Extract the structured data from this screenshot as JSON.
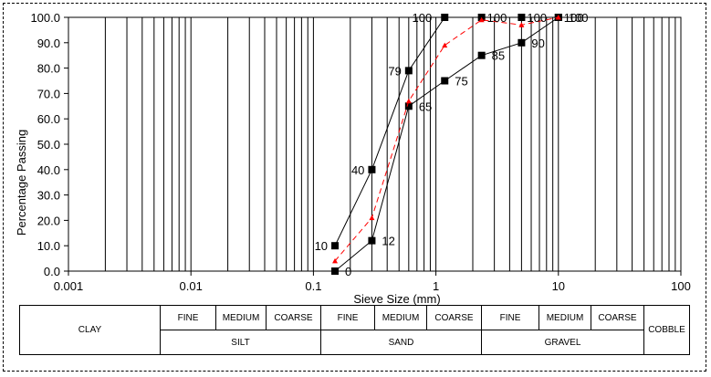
{
  "chart_data": {
    "type": "line",
    "xlabel": "Sieve Size (mm)",
    "ylabel": "Percentage Passing",
    "xscale": "log",
    "xlim": [
      0.001,
      100
    ],
    "ylim": [
      0,
      100
    ],
    "grid": "vertical",
    "x_ticks": [
      "0.001",
      "0.01",
      "0.1",
      "1",
      "10",
      "100"
    ],
    "y_ticks": [
      "0.0",
      "10.0",
      "20.0",
      "30.0",
      "40.0",
      "50.0",
      "60.0",
      "70.0",
      "80.0",
      "90.0",
      "100.0"
    ],
    "series": [
      {
        "color": "#000000",
        "style": "solid",
        "marker": "square",
        "x": [
          0.15,
          0.3,
          0.6,
          1.18,
          2.36,
          5,
          10
        ],
        "y": [
          10,
          40,
          79,
          100,
          100,
          100,
          100
        ],
        "labels": [
          "10",
          "40",
          "79",
          "100",
          "100",
          "100",
          "100"
        ]
      },
      {
        "color": "#000000",
        "style": "solid",
        "marker": "square",
        "x": [
          0.15,
          0.3,
          0.6,
          1.18,
          2.36,
          5,
          10
        ],
        "y": [
          0,
          12,
          65,
          75,
          85,
          90,
          100
        ],
        "labels": [
          "0",
          "12",
          "65",
          "75",
          "85",
          "90",
          "100"
        ]
      },
      {
        "color": "#ff0000",
        "style": "dashed",
        "marker": "triangle",
        "x": [
          0.15,
          0.3,
          0.6,
          1.18,
          2.36,
          5,
          10
        ],
        "y": [
          4,
          21,
          67,
          89,
          99,
          97,
          100
        ],
        "labels": []
      }
    ]
  },
  "classification": {
    "top_row": [
      "FINE",
      "MEDIUM",
      "COARSE",
      "FINE",
      "MEDIUM",
      "COARSE",
      "FINE",
      "MEDIUM",
      "COARSE"
    ],
    "clay": "CLAY",
    "silt": "SILT",
    "sand": "SAND",
    "gravel": "GRAVEL",
    "cobble": "COBBLE"
  }
}
